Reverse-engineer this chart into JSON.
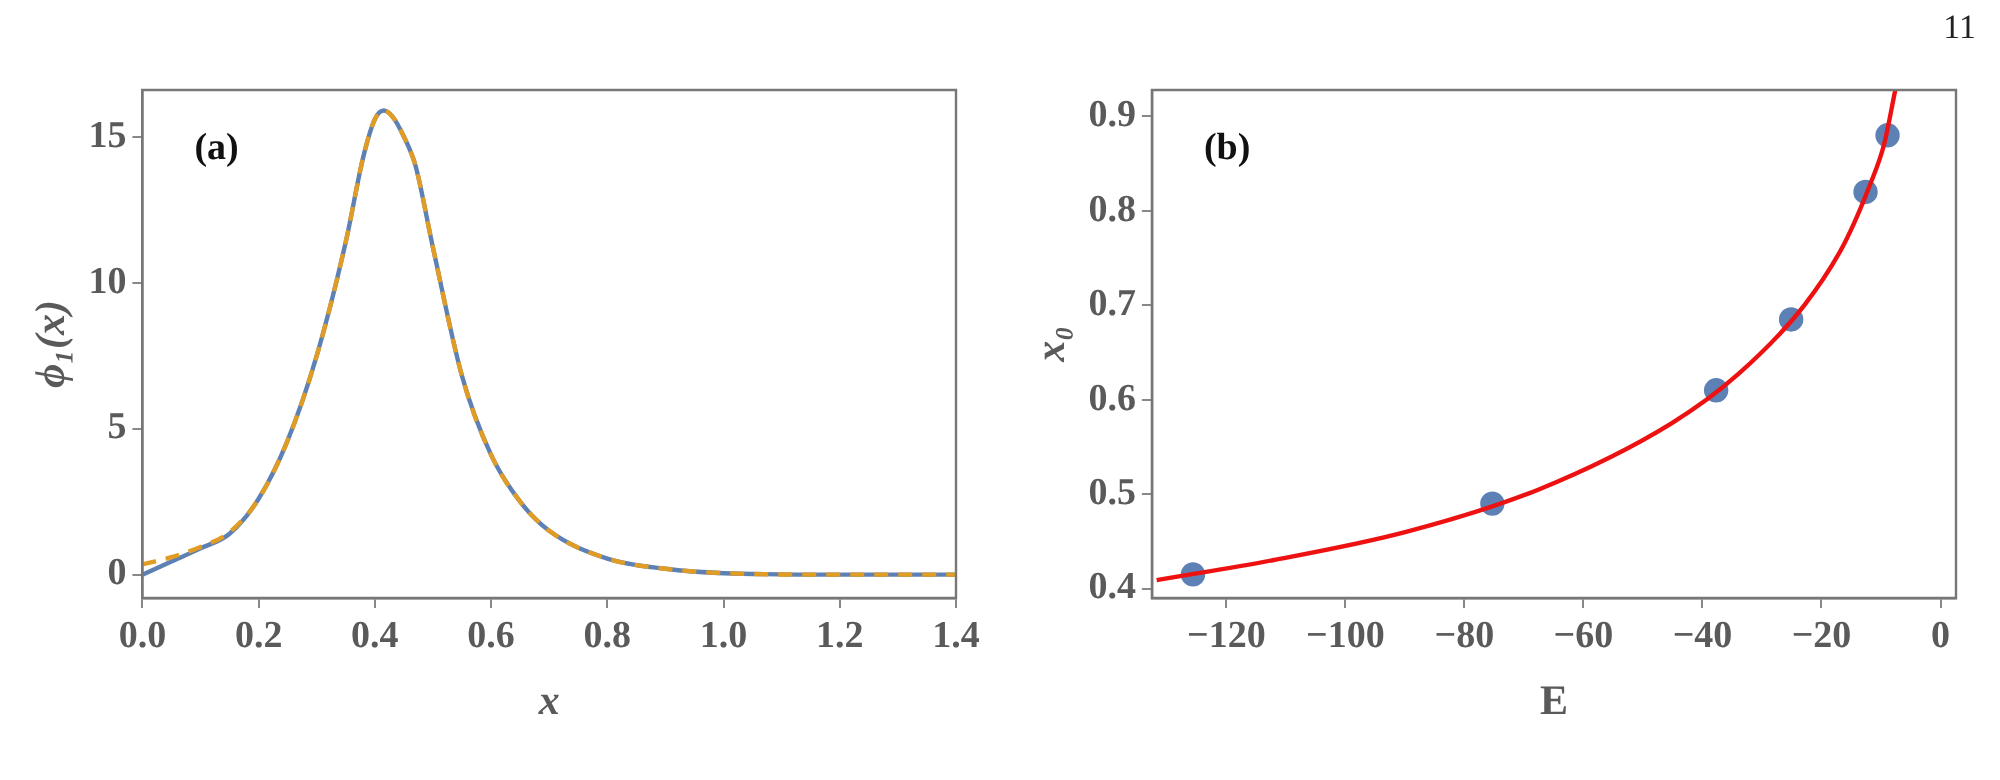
{
  "chart_data": [
    {
      "type": "line",
      "xlabel": "x",
      "ylabel": "ϕ₁(x)",
      "annotations": [
        "(a)"
      ],
      "xlim": [
        0,
        1.4
      ],
      "ylim": [
        -0.8,
        16.6
      ],
      "xticks": [
        {
          "value": 0,
          "label": "0.0"
        },
        0.2,
        0.4,
        0.6,
        0.8,
        {
          "value": 1,
          "label": "1.0"
        },
        1.2,
        1.4
      ],
      "yticks": [
        0,
        5,
        10,
        15
      ],
      "grid": false,
      "legend": false,
      "marker": "none",
      "series": [
        {
          "color": "#5e81b5",
          "line_style": "solid",
          "x": [
            0,
            0.05,
            0.1,
            0.15,
            0.2,
            0.25,
            0.3,
            0.35,
            0.38,
            0.4,
            0.415,
            0.43,
            0.45,
            0.47,
            0.5,
            0.55,
            0.6,
            0.65,
            0.7,
            0.8,
            0.9,
            1.0,
            1.2,
            1.4
          ],
          "values": [
            0,
            0.45,
            0.9,
            1.4,
            2.6,
            4.6,
            7.5,
            11.4,
            14.3,
            15.6,
            15.9,
            15.7,
            15.0,
            14.0,
            11.2,
            6.8,
            4.1,
            2.5,
            1.5,
            0.55,
            0.2,
            0.05,
            0,
            0
          ]
        },
        {
          "color": "#e19c24",
          "line_style": "dashed",
          "x": [
            0,
            0.05,
            0.1,
            0.15,
            0.2,
            0.25,
            0.3,
            0.35,
            0.38,
            0.4,
            0.415,
            0.43,
            0.45,
            0.47,
            0.5,
            0.55,
            0.6,
            0.65,
            0.7,
            0.8,
            0.9,
            1.0,
            1.2,
            1.4
          ],
          "values": [
            0.35,
            0.6,
            0.95,
            1.45,
            2.6,
            4.6,
            7.5,
            11.4,
            14.3,
            15.6,
            15.9,
            15.7,
            15.0,
            14.0,
            11.2,
            6.8,
            4.1,
            2.5,
            1.5,
            0.55,
            0.2,
            0.05,
            0,
            0
          ]
        }
      ]
    },
    {
      "type": "scatter",
      "xlabel": "E",
      "ylabel": "x₀",
      "annotations": [
        "(b)",
        "11"
      ],
      "xlim": [
        -132.5,
        2.6
      ],
      "ylim": [
        0.39,
        0.928
      ],
      "xticks": [
        {
          "value": -120,
          "label": "−120"
        },
        {
          "value": -100,
          "label": "−100"
        },
        {
          "value": -80,
          "label": "−80"
        },
        {
          "value": -60,
          "label": "−60"
        },
        {
          "value": -40,
          "label": "−40"
        },
        {
          "value": -20,
          "label": "−20"
        },
        0
      ],
      "yticks": [
        0.4,
        0.5,
        0.6,
        0.7,
        0.8,
        0.9
      ],
      "grid": false,
      "legend": false,
      "series": [
        {
          "type": "scatter",
          "marker": "circle",
          "color": "#5e81b5",
          "x": [
            -125.6,
            -75.3,
            -37.7,
            -25.1,
            -12.6,
            -8.9
          ],
          "values": [
            0.415,
            0.49,
            0.61,
            0.685,
            0.82,
            0.88
          ]
        },
        {
          "type": "line",
          "marker": "none",
          "line_style": "solid",
          "color": "#ee1111",
          "x": [
            -131.7,
            -112.2,
            -89.8,
            -67.5,
            -45.2,
            -34,
            -22.9,
            -16.2,
            -11.7,
            -9.5,
            -7.6
          ],
          "values": [
            0.409,
            0.43,
            0.46,
            0.505,
            0.575,
            0.627,
            0.7,
            0.765,
            0.83,
            0.87,
            0.928
          ]
        }
      ]
    }
  ]
}
